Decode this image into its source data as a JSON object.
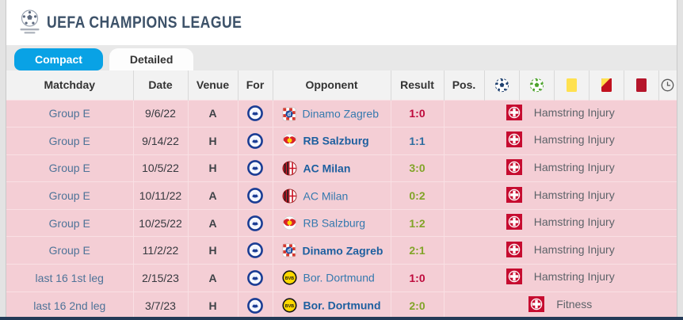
{
  "header": {
    "title": "UEFA CHAMPIONS LEAGUE",
    "logo_icon": "champions-league-logo"
  },
  "tabs": [
    {
      "label": "Compact",
      "active": true
    },
    {
      "label": "Detailed",
      "active": false
    }
  ],
  "table": {
    "columns": [
      "Matchday",
      "Date",
      "Venue",
      "For",
      "Opponent",
      "Result",
      "Pos."
    ],
    "icon_columns": [
      "goals-icon",
      "assists-icon",
      "yellow-card-icon",
      "yellow-red-card-icon",
      "red-card-icon",
      "minutes-played-icon"
    ],
    "rows": [
      {
        "matchday": "Group E",
        "date": "9/6/22",
        "venue": "A",
        "for_badge": "chelsea-badge",
        "opponent_badge": "dinamo-zagreb-badge",
        "opponent": "Dinamo Zagreb",
        "home": false,
        "result": "1:0",
        "outcome": "loss",
        "absence": "Hamstring Injury"
      },
      {
        "matchday": "Group E",
        "date": "9/14/22",
        "venue": "H",
        "for_badge": "chelsea-badge",
        "opponent_badge": "rb-salzburg-badge",
        "opponent": "RB Salzburg",
        "home": true,
        "result": "1:1",
        "outcome": "draw",
        "absence": "Hamstring Injury"
      },
      {
        "matchday": "Group E",
        "date": "10/5/22",
        "venue": "H",
        "for_badge": "chelsea-badge",
        "opponent_badge": "ac-milan-badge",
        "opponent": "AC Milan",
        "home": true,
        "result": "3:0",
        "outcome": "win",
        "absence": "Hamstring Injury"
      },
      {
        "matchday": "Group E",
        "date": "10/11/22",
        "venue": "A",
        "for_badge": "chelsea-badge",
        "opponent_badge": "ac-milan-badge",
        "opponent": "AC Milan",
        "home": false,
        "result": "0:2",
        "outcome": "win",
        "absence": "Hamstring Injury"
      },
      {
        "matchday": "Group E",
        "date": "10/25/22",
        "venue": "A",
        "for_badge": "chelsea-badge",
        "opponent_badge": "rb-salzburg-badge",
        "opponent": "RB Salzburg",
        "home": false,
        "result": "1:2",
        "outcome": "win",
        "absence": "Hamstring Injury"
      },
      {
        "matchday": "Group E",
        "date": "11/2/22",
        "venue": "H",
        "for_badge": "chelsea-badge",
        "opponent_badge": "dinamo-zagreb-badge",
        "opponent": "Dinamo Zagreb",
        "home": true,
        "result": "2:1",
        "outcome": "win",
        "absence": "Hamstring Injury"
      },
      {
        "matchday": "last 16 1st leg",
        "date": "2/15/23",
        "venue": "A",
        "for_badge": "chelsea-badge",
        "opponent_badge": "borussia-dortmund-badge",
        "opponent": "Bor. Dortmund",
        "home": false,
        "result": "1:0",
        "outcome": "loss",
        "absence": "Hamstring Injury"
      },
      {
        "matchday": "last 16 2nd leg",
        "date": "3/7/23",
        "venue": "H",
        "for_badge": "chelsea-badge",
        "opponent_badge": "borussia-dortmund-badge",
        "opponent": "Bor. Dortmund",
        "home": true,
        "result": "2:0",
        "outcome": "win",
        "absence": "Fitness"
      }
    ],
    "absence_icon": "injury-cross-icon"
  },
  "colors": {
    "accent": "#09a2e5",
    "win": "#81a428",
    "draw": "#2d6da0",
    "loss": "#be0a3c",
    "rowpink": "#f4ced5",
    "pinkline": "#f9e0e4",
    "injuryred": "#c60c30"
  }
}
